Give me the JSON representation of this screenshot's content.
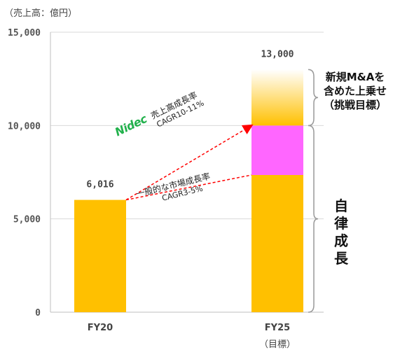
{
  "unit_label": "（売上高：億円）",
  "chart_data": {
    "type": "bar",
    "categories": [
      "FY20",
      "FY25"
    ],
    "category_sublabels": [
      "",
      "（目標）"
    ],
    "ylim": [
      0,
      15000
    ],
    "yticks": [
      0,
      5000,
      10000,
      15000
    ],
    "ytick_labels": [
      "0",
      "5,000",
      "10,000",
      "15,000"
    ],
    "grid": true,
    "bars": [
      {
        "category": "FY20",
        "segments": [
          {
            "from": 0,
            "to": 6016,
            "color": "#ffc000"
          }
        ],
        "total_label": "6,016"
      },
      {
        "category": "FY25",
        "segments": [
          {
            "from": 0,
            "to": 7350,
            "color": "#ffc000"
          },
          {
            "from": 7350,
            "to": 10000,
            "color": "#ff66ff"
          },
          {
            "from": 10000,
            "to": 13000,
            "color": "#ffc000",
            "gradient_to": "#ffffff"
          }
        ],
        "total_label": "13,000"
      }
    ],
    "growth_lines": [
      {
        "from": 6016,
        "to": 10000,
        "color": "#ff0000"
      },
      {
        "from": 6016,
        "to": 7350,
        "color": "#ff0000"
      }
    ]
  },
  "annotations": {
    "nidec_logo_text": "Nidec",
    "nidec_growth": {
      "title": "売上高成長率",
      "sub": "CAGR10-11%"
    },
    "market_growth": {
      "title": "一般的な市場成長率",
      "sub": "CAGR3-5%"
    },
    "challenge": [
      "新規M&Aを",
      "含めた上乗せ",
      "（挑戦目標）"
    ],
    "organic": [
      "自",
      "律",
      "成",
      "長"
    ]
  },
  "colors": {
    "bar": "#ffc000",
    "pink": "#ff66ff",
    "arrow": "#ff0000",
    "brace": "#999999",
    "grid": "#d9d9d9",
    "axis": "#bfbfbf"
  }
}
